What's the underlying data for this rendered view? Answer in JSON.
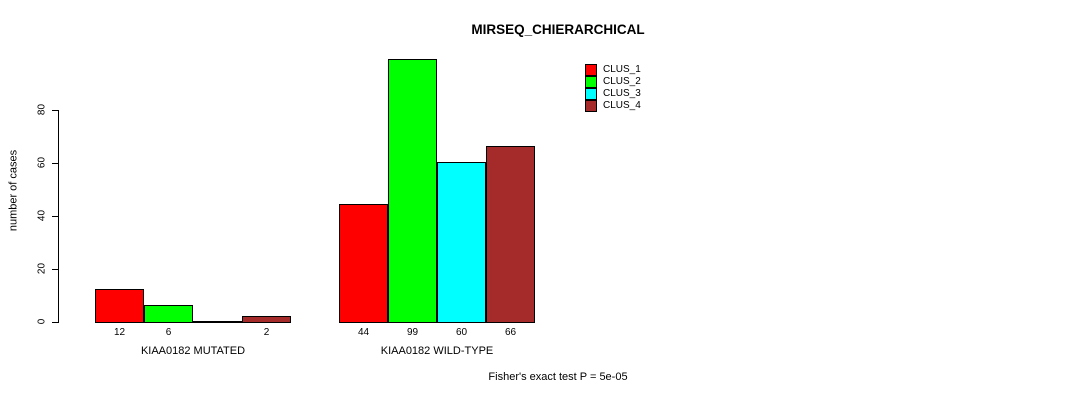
{
  "title": "MIRSEQ_CHIERARCHICAL",
  "chart_data": {
    "type": "bar",
    "title": "MIRSEQ_CHIERARCHICAL",
    "ylabel": "number of cases",
    "xlabel": "",
    "ylim": [
      0,
      80
    ],
    "yticks": [
      0,
      20,
      40,
      60,
      80
    ],
    "grid": false,
    "legend_position": "top-right",
    "categories": [
      "KIAA0182 MUTATED",
      "KIAA0182 WILD-TYPE"
    ],
    "series": [
      {
        "name": "CLUS_1",
        "color": "#ff0000",
        "values": [
          12,
          44
        ]
      },
      {
        "name": "CLUS_2",
        "color": "#00ff00",
        "values": [
          6,
          99
        ]
      },
      {
        "name": "CLUS_3",
        "color": "#00ffff",
        "values": [
          0,
          60
        ]
      },
      {
        "name": "CLUS_4",
        "color": "#a52a2a",
        "values": [
          2,
          66
        ]
      }
    ],
    "groups": [
      {
        "label": "KIAA0182 MUTATED",
        "values": [
          12,
          6,
          0,
          2
        ],
        "bar_labels": [
          "12",
          "6",
          "",
          "2"
        ]
      },
      {
        "label": "KIAA0182 WILD-TYPE",
        "values": [
          44,
          99,
          60,
          66
        ],
        "bar_labels": [
          "44",
          "99",
          "60",
          "66"
        ]
      }
    ],
    "annotation": "Fisher's exact test P = 5e-05"
  }
}
